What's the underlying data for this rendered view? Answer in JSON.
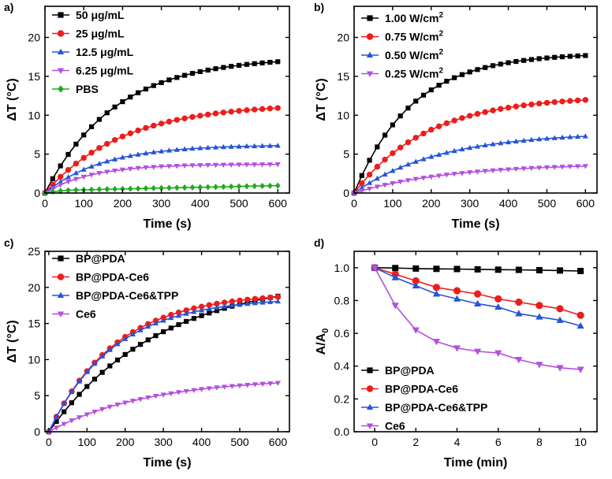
{
  "chart_data": [
    {
      "panel_label": "a)",
      "type": "line",
      "xlabel": "Time (s)",
      "ylabel": "ΔT (°C)",
      "xlim": [
        0,
        630
      ],
      "ylim": [
        0,
        24
      ],
      "xticks": [
        0,
        100,
        200,
        300,
        400,
        500,
        600
      ],
      "yticks": [
        0,
        5,
        10,
        15,
        20
      ],
      "legend_position": "top-left",
      "series": [
        {
          "name": "50 μg/mL",
          "color": "#000000",
          "marker": "square",
          "kind": "exp",
          "plateau": 17.5,
          "tau": 180,
          "step": 20
        },
        {
          "name": "25 μg/mL",
          "color": "#ee1c1c",
          "marker": "circle",
          "kind": "exp",
          "plateau": 11.5,
          "tau": 200,
          "step": 20
        },
        {
          "name": "12.5 μg/mL",
          "color": "#2554d8",
          "marker": "triangle-up",
          "kind": "exp",
          "plateau": 6.2,
          "tau": 150,
          "step": 20
        },
        {
          "name": "6.25 μg/mL",
          "color": "#b44fe0",
          "marker": "triangle-down",
          "kind": "exp",
          "plateau": 3.7,
          "tau": 120,
          "step": 20
        },
        {
          "name": "PBS",
          "color": "#22aa22",
          "marker": "diamond",
          "kind": "pbs",
          "step": 20
        }
      ]
    },
    {
      "panel_label": "b)",
      "type": "line",
      "xlabel": "Time (s)",
      "ylabel": "ΔT (°C)",
      "xlim": [
        0,
        630
      ],
      "ylim": [
        0,
        24
      ],
      "xticks": [
        0,
        100,
        200,
        300,
        400,
        500,
        600
      ],
      "yticks": [
        0,
        5,
        10,
        15,
        20
      ],
      "legend_position": "top-left",
      "series": [
        {
          "name": "1.00 W/cm",
          "sup": "2",
          "color": "#000000",
          "marker": "square",
          "kind": "exp",
          "plateau": 18.0,
          "tau": 150,
          "step": 20
        },
        {
          "name": "0.75 W/cm",
          "sup": "2",
          "color": "#ee1c1c",
          "marker": "circle",
          "kind": "exp",
          "plateau": 12.5,
          "tau": 190,
          "step": 20
        },
        {
          "name": "0.50 W/cm",
          "sup": "2",
          "color": "#2554d8",
          "marker": "triangle-up",
          "kind": "exp",
          "plateau": 7.8,
          "tau": 220,
          "step": 20
        },
        {
          "name": "0.25 W/cm",
          "sup": "2",
          "color": "#b44fe0",
          "marker": "triangle-down",
          "kind": "exp",
          "plateau": 3.8,
          "tau": 250,
          "step": 20
        }
      ]
    },
    {
      "panel_label": "c)",
      "type": "line",
      "xlabel": "Time (s)",
      "ylabel": "ΔT (°C)",
      "xlim": [
        -10,
        630
      ],
      "ylim": [
        0,
        25
      ],
      "xticks": [
        0,
        100,
        200,
        300,
        400,
        500,
        600
      ],
      "yticks": [
        0,
        5,
        10,
        15,
        20,
        25
      ],
      "legend_position": "top-left",
      "series": [
        {
          "name": "BP@PDA",
          "color": "#000000",
          "marker": "square",
          "kind": "exp",
          "plateau": 21.5,
          "tau": 290,
          "step": 20
        },
        {
          "name": "BP@PDA-Ce6",
          "color": "#ee1c1c",
          "marker": "circle",
          "kind": "exp",
          "plateau": 19.3,
          "tau": 175,
          "step": 20
        },
        {
          "name": "BP@PDA-Ce6&TPP",
          "color": "#2554d8",
          "marker": "triangle-up",
          "kind": "exp",
          "plateau": 18.6,
          "tau": 170,
          "step": 20
        },
        {
          "name": "Ce6",
          "color": "#b44fe0",
          "marker": "triangle-down",
          "kind": "exp",
          "plateau": 7.5,
          "tau": 260,
          "step": 20
        }
      ]
    },
    {
      "panel_label": "d)",
      "type": "line",
      "xlabel": "Time (min)",
      "ylabel": "A/A",
      "ylabel_sub": "0",
      "xlim": [
        -1,
        10.8
      ],
      "ylim": [
        0,
        1.1
      ],
      "xticks": [
        0,
        2,
        4,
        6,
        8,
        10
      ],
      "yticks": [
        0.0,
        0.2,
        0.4,
        0.6,
        0.8,
        1.0
      ],
      "ytick_labels": [
        "0.0",
        "0.2",
        "0.4",
        "0.6",
        "0.8",
        "1.0"
      ],
      "legend_position": "bottom-left",
      "series": [
        {
          "name": "BP@PDA",
          "color": "#000000",
          "marker": "square",
          "x": [
            0,
            1,
            2,
            3,
            4,
            5,
            6,
            7,
            8,
            9,
            10
          ],
          "y": [
            1.0,
            0.998,
            0.995,
            0.993,
            0.992,
            0.99,
            0.988,
            0.987,
            0.985,
            0.983,
            0.98
          ]
        },
        {
          "name": "BP@PDA-Ce6",
          "color": "#ee1c1c",
          "marker": "circle",
          "x": [
            0,
            1,
            2,
            3,
            4,
            5,
            6,
            7,
            8,
            9,
            10
          ],
          "y": [
            1.0,
            0.96,
            0.92,
            0.88,
            0.86,
            0.84,
            0.81,
            0.79,
            0.77,
            0.75,
            0.71
          ]
        },
        {
          "name": "BP@PDA-Ce6&TPP",
          "color": "#2554d8",
          "marker": "triangle-up",
          "x": [
            0,
            1,
            2,
            3,
            4,
            5,
            6,
            7,
            8,
            9,
            10
          ],
          "y": [
            1.0,
            0.94,
            0.89,
            0.84,
            0.81,
            0.78,
            0.76,
            0.72,
            0.7,
            0.68,
            0.645
          ]
        },
        {
          "name": "Ce6",
          "color": "#b44fe0",
          "marker": "triangle-down",
          "x": [
            0,
            1,
            2,
            3,
            4,
            5,
            6,
            7,
            8,
            9,
            10
          ],
          "y": [
            1.0,
            0.77,
            0.62,
            0.55,
            0.51,
            0.49,
            0.48,
            0.44,
            0.41,
            0.39,
            0.38
          ]
        }
      ]
    }
  ]
}
